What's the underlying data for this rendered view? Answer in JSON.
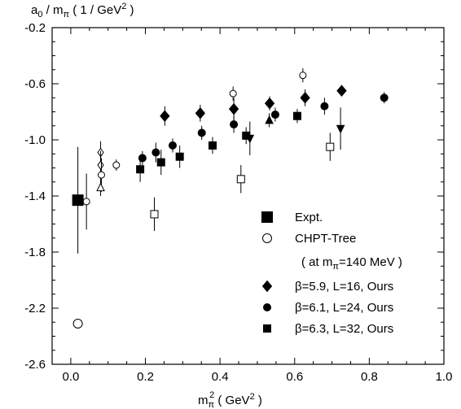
{
  "chart_data": {
    "type": "scatter",
    "title": "",
    "ylabel": {
      "base": "a",
      "sub1": "0",
      "mid": " / m",
      "sub2": "π",
      "unit": "  ( 1 / GeV",
      "sup": "2",
      "close": " )"
    },
    "xlabel": {
      "base": "m",
      "sub": "π",
      "sup": "2",
      "unit": "  ( GeV",
      "unitsup": "2",
      "close": " )"
    },
    "xlim": [
      -0.05,
      1.0
    ],
    "ylim": [
      -2.6,
      -0.2
    ],
    "xticks": [
      0.0,
      0.2,
      0.4,
      0.6,
      0.8,
      1.0
    ],
    "xtick_labels": [
      "0.0",
      "0.2",
      "0.4",
      "0.6",
      "0.8",
      "1.0"
    ],
    "yticks": [
      -0.2,
      -0.6,
      -1.0,
      -1.4,
      -1.8,
      -2.2,
      -2.6
    ],
    "ytick_labels": [
      "-0.2",
      "-0.6",
      "-1.0",
      "-1.4",
      "-1.8",
      "-2.2",
      "-2.6"
    ],
    "grid": false,
    "legend_position": "bottom-right",
    "legend": [
      {
        "marker": "square-filled-large",
        "label": "Expt."
      },
      {
        "marker": "circle-open-large",
        "label": "CHPT-Tree"
      },
      {
        "marker": "none",
        "label": "( at m",
        "label_sub": "π",
        "label_tail": "=140 MeV )"
      },
      {
        "marker": "diamond-filled",
        "label": "β=5.9, L=16, Ours"
      },
      {
        "marker": "circle-filled",
        "label": "β=6.1, L=24, Ours"
      },
      {
        "marker": "square-filled",
        "label": "β=6.3, L=32, Ours"
      }
    ],
    "series": [
      {
        "name": "Expt.",
        "marker": "square-filled-large",
        "points": [
          [
            0.019,
            -1.43,
            0.38
          ]
        ]
      },
      {
        "name": "CHPT-Tree",
        "marker": "circle-open-large",
        "points": [
          [
            0.019,
            -2.31,
            0
          ]
        ]
      },
      {
        "name": "β=5.9, L=16, Ours",
        "marker": "diamond-filled",
        "points": [
          [
            0.252,
            -0.83,
            0.07
          ],
          [
            0.347,
            -0.81,
            0.06
          ],
          [
            0.437,
            -0.78,
            0.08
          ],
          [
            0.533,
            -0.74,
            0.05
          ],
          [
            0.628,
            -0.7,
            0.06
          ],
          [
            0.726,
            -0.65,
            0.04
          ]
        ]
      },
      {
        "name": "β=6.1, L=24, Ours",
        "marker": "circle-filled",
        "points": [
          [
            0.192,
            -1.13,
            0.05
          ],
          [
            0.228,
            -1.09,
            0.07
          ],
          [
            0.273,
            -1.04,
            0.05
          ],
          [
            0.351,
            -0.95,
            0.05
          ],
          [
            0.437,
            -0.89,
            0.06
          ],
          [
            0.548,
            -0.82,
            0.05
          ],
          [
            0.68,
            -0.76,
            0.06
          ],
          [
            0.84,
            -0.7,
            0.04
          ]
        ]
      },
      {
        "name": "β=6.3, L=32, Ours",
        "marker": "square-filled",
        "points": [
          [
            0.186,
            -1.21,
            0.09
          ],
          [
            0.242,
            -1.16,
            0.09
          ],
          [
            0.292,
            -1.12,
            0.08
          ],
          [
            0.38,
            -1.04,
            0.06
          ],
          [
            0.47,
            -0.97,
            0.06
          ],
          [
            0.607,
            -0.83,
            0.05
          ]
        ]
      },
      {
        "name": "",
        "marker": "diamond-open",
        "points": [
          [
            0.08,
            -1.09,
            0.08
          ],
          [
            0.08,
            -1.18,
            0.1
          ]
        ]
      },
      {
        "name": "",
        "marker": "circle-open",
        "points": [
          [
            0.082,
            -1.25,
            0.12
          ],
          [
            0.042,
            -1.44,
            0.2
          ],
          [
            0.122,
            -1.18,
            0.04
          ],
          [
            0.435,
            -0.67,
            0.05
          ],
          [
            0.622,
            -0.54,
            0.05
          ]
        ]
      },
      {
        "name": "",
        "marker": "triangle-open",
        "points": [
          [
            0.08,
            -1.34,
            0.06
          ]
        ]
      },
      {
        "name": "",
        "marker": "triangle-filled",
        "points": [
          [
            0.532,
            -0.86,
            0.05
          ]
        ]
      },
      {
        "name": "",
        "marker": "triangle-down-filled",
        "points": [
          [
            0.48,
            -0.99,
            0.12
          ],
          [
            0.723,
            -0.92,
            0.15
          ]
        ]
      },
      {
        "name": "",
        "marker": "square-open",
        "points": [
          [
            0.224,
            -1.53,
            0.12
          ],
          [
            0.456,
            -1.28,
            0.1
          ],
          [
            0.695,
            -1.05,
            0.1
          ]
        ]
      }
    ]
  }
}
